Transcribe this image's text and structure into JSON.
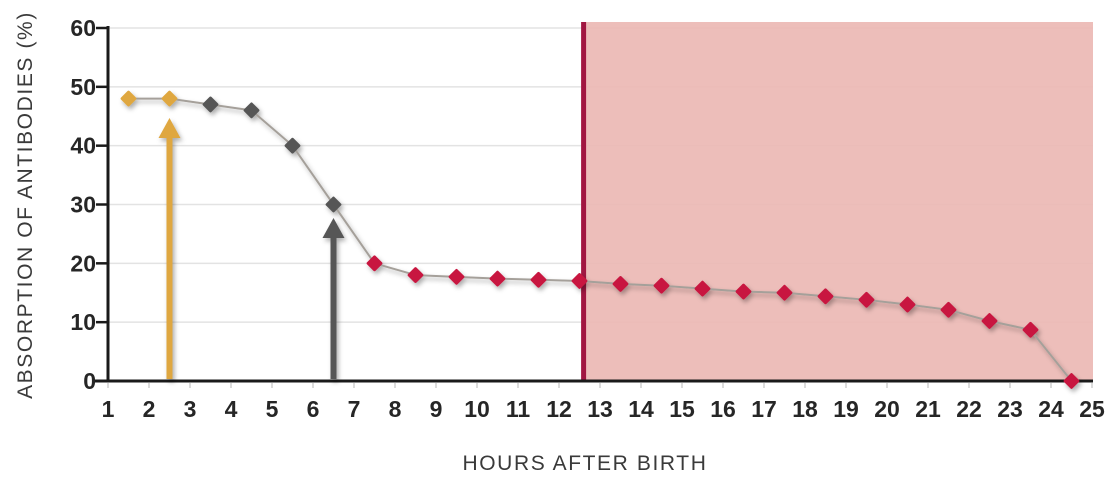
{
  "chart_data": {
    "type": "line",
    "title": "",
    "xlabel": "HOURS AFTER BIRTH",
    "ylabel": "ABSORPTION OF ANTIBODIES (%)",
    "xlim": [
      1,
      25
    ],
    "ylim": [
      0,
      60
    ],
    "x_ticks": [
      1,
      2,
      3,
      4,
      5,
      6,
      7,
      8,
      9,
      10,
      11,
      12,
      13,
      14,
      15,
      16,
      17,
      18,
      19,
      20,
      21,
      22,
      23,
      24,
      25
    ],
    "y_ticks": [
      0,
      10,
      20,
      30,
      40,
      50,
      60
    ],
    "grid": "horizontal-only",
    "legend": "none",
    "marker": "diamond",
    "series": [
      {
        "name": "antibody-absorption",
        "points": [
          {
            "x": 1.5,
            "y": 48,
            "phase": "gold"
          },
          {
            "x": 2.5,
            "y": 48,
            "phase": "gold"
          },
          {
            "x": 3.5,
            "y": 47,
            "phase": "gray"
          },
          {
            "x": 4.5,
            "y": 46,
            "phase": "gray"
          },
          {
            "x": 5.5,
            "y": 40,
            "phase": "gray"
          },
          {
            "x": 6.5,
            "y": 30,
            "phase": "gray"
          },
          {
            "x": 7.5,
            "y": 20,
            "phase": "red"
          },
          {
            "x": 8.5,
            "y": 18,
            "phase": "red"
          },
          {
            "x": 9.5,
            "y": 17.7,
            "phase": "red"
          },
          {
            "x": 10.5,
            "y": 17.4,
            "phase": "red"
          },
          {
            "x": 11.5,
            "y": 17.2,
            "phase": "red"
          },
          {
            "x": 12.5,
            "y": 17,
            "phase": "red"
          },
          {
            "x": 13.5,
            "y": 16.5,
            "phase": "red"
          },
          {
            "x": 14.5,
            "y": 16.2,
            "phase": "red"
          },
          {
            "x": 15.5,
            "y": 15.7,
            "phase": "red"
          },
          {
            "x": 16.5,
            "y": 15.2,
            "phase": "red"
          },
          {
            "x": 17.5,
            "y": 15,
            "phase": "red"
          },
          {
            "x": 18.5,
            "y": 14.4,
            "phase": "red"
          },
          {
            "x": 19.5,
            "y": 13.8,
            "phase": "red"
          },
          {
            "x": 20.5,
            "y": 13,
            "phase": "red"
          },
          {
            "x": 21.5,
            "y": 12.1,
            "phase": "red"
          },
          {
            "x": 22.5,
            "y": 10.2,
            "phase": "red"
          },
          {
            "x": 23.5,
            "y": 8.7,
            "phase": "red"
          },
          {
            "x": 24.5,
            "y": 0,
            "phase": "red"
          }
        ]
      }
    ],
    "annotations": {
      "arrows": [
        {
          "name": "gold-arrow",
          "x": 2.5,
          "from_y": 0,
          "to_y": 44.7,
          "color_key": "gold"
        },
        {
          "name": "gray-arrow",
          "x": 6.5,
          "from_y": 0,
          "to_y": 27.7,
          "color_key": "gray"
        }
      ],
      "threshold_line": {
        "x": 12.6
      },
      "shaded_region": {
        "from_x": 12.6,
        "to_x": 25.1
      }
    },
    "colors": {
      "gold": "#DFA73F",
      "gray": "#575757",
      "red": "#C8163F",
      "threshold_line": "#A11742",
      "shaded_region": "#ECB9B4",
      "series_line": "#A5A09A",
      "grid": "#E3E3E3",
      "axis": "#1A1A1A",
      "tick_text": "#262626",
      "title_text": "#3A3A3A",
      "minor_tick": "#CFCFCF"
    }
  }
}
